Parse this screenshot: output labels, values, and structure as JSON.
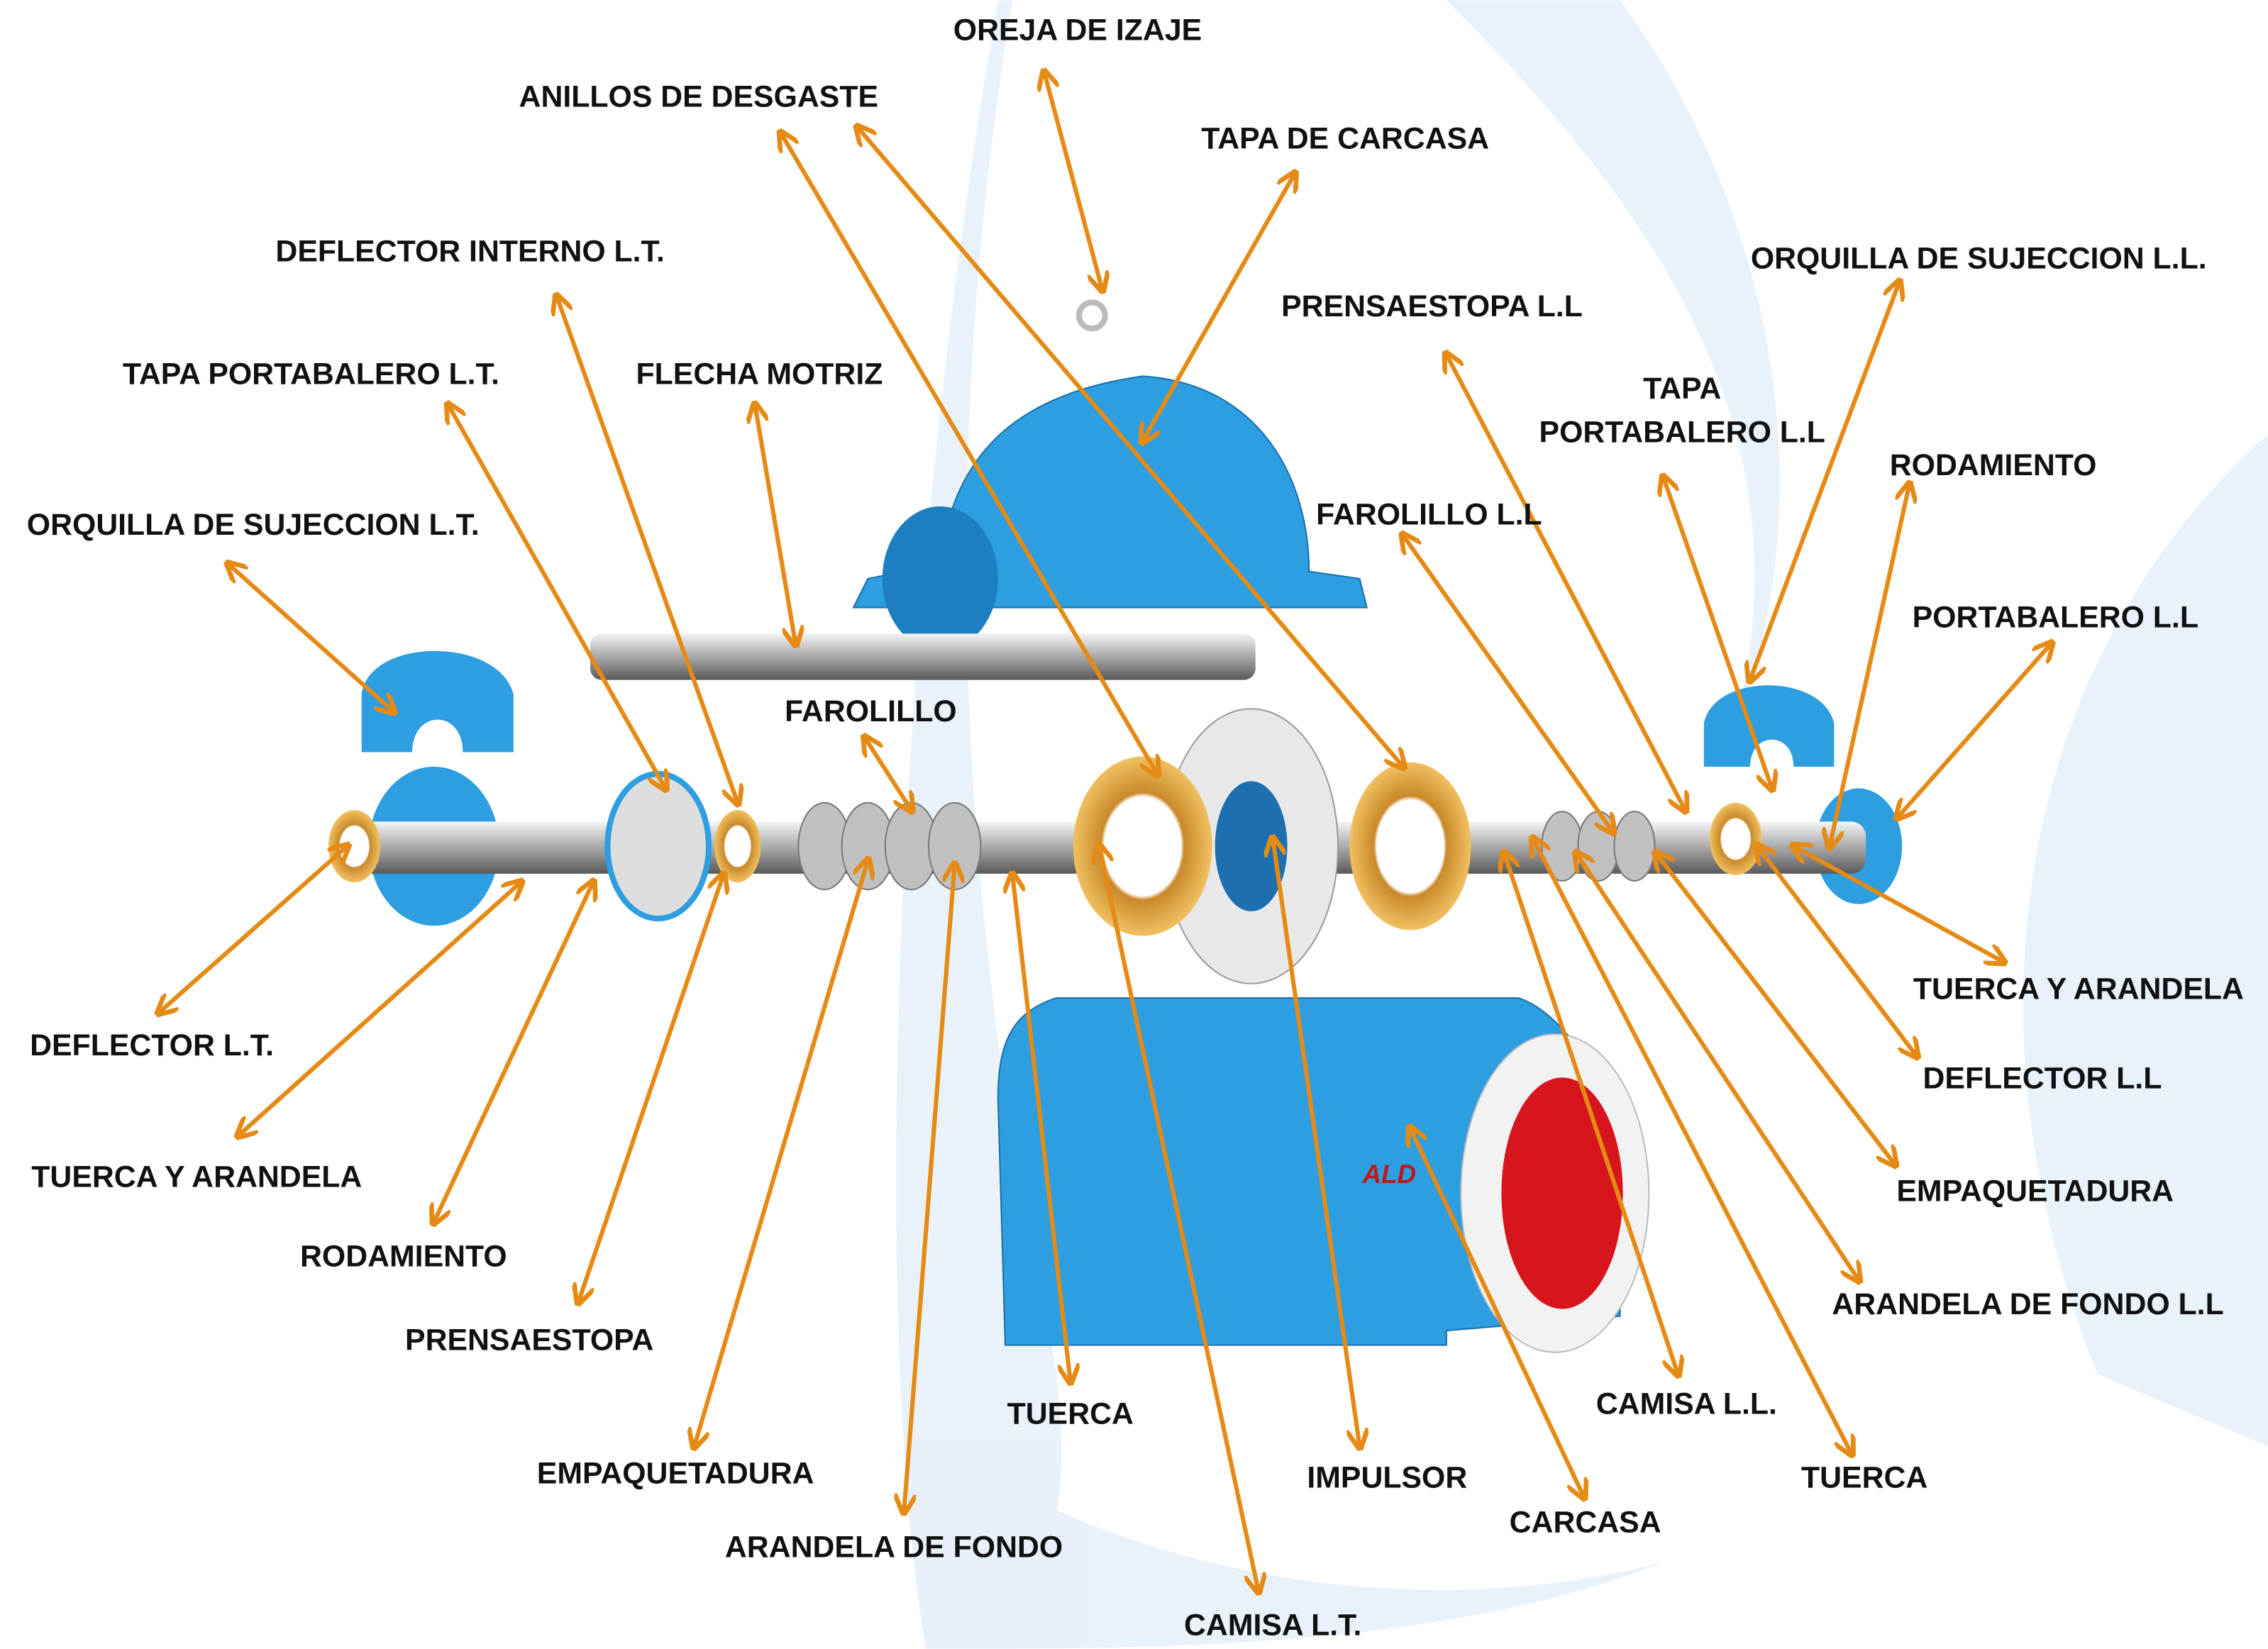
{
  "labels": [
    {
      "text": "OREJA DE IZAJE"
    },
    {
      "text": "ANILLOS DE DESGASTE"
    },
    {
      "text": "TAPA DE CARCASA"
    },
    {
      "text": "DEFLECTOR INTERNO L.T."
    },
    {
      "text": "PRENSAESTOPA L.L"
    },
    {
      "text": "ORQUILLA DE SUJECCION L.L."
    },
    {
      "text": "TAPA PORTABALERO L.T."
    },
    {
      "text": "FLECHA MOTRIZ"
    },
    {
      "lines": [
        "TAPA",
        "PORTABALERO  L.L"
      ]
    },
    {
      "text": "RODAMIENTO"
    },
    {
      "text": "ORQUILLA DE SUJECCION L.T."
    },
    {
      "text": "FAROLILLO L.L"
    },
    {
      "text": "PORTABALERO L.L"
    },
    {
      "text": "FAROLILLO"
    },
    {
      "text": "TUERCA Y ARANDELA"
    },
    {
      "text": "DEFLECTOR L.T."
    },
    {
      "text": "DEFLECTOR L.L"
    },
    {
      "text": "TUERCA Y ARANDELA"
    },
    {
      "text": "EMPAQUETADURA"
    },
    {
      "text": "RODAMIENTO"
    },
    {
      "text": "ARANDELA DE FONDO L.L"
    },
    {
      "text": "PRENSAESTOPA"
    },
    {
      "text": "CAMISA L.L."
    },
    {
      "text": "TUERCA"
    },
    {
      "text": "TUERCA"
    },
    {
      "text": "EMPAQUETADURA"
    },
    {
      "text": "IMPULSOR"
    },
    {
      "text": "CARCASA"
    },
    {
      "text": "ARANDELA DE FONDO"
    },
    {
      "text": "CAMISA L.T."
    }
  ],
  "logo": "ALD"
}
